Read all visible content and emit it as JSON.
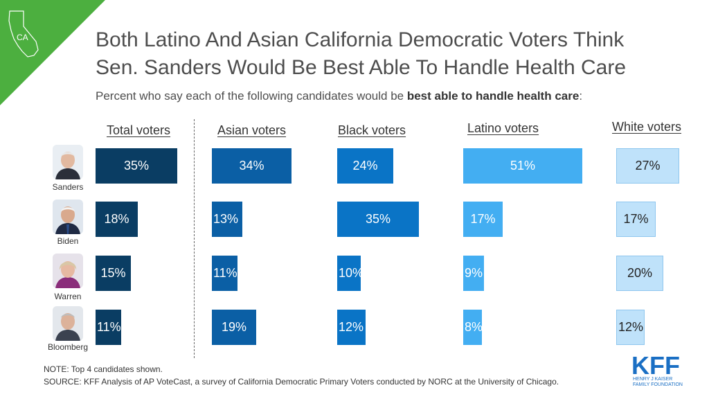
{
  "badge": {
    "label": "CA"
  },
  "header": {
    "title_line1": "Both Latino And Asian California Democratic Voters Think",
    "title_line2": "Sen. Sanders Would Be Best Able To Handle Health Care",
    "subtitle_pre": "Percent who say each of the following candidates would be ",
    "subtitle_bold": "best able to handle health care",
    "subtitle_post": ":"
  },
  "colors": {
    "total": "#0a3d63",
    "asian": "#0b5fa5",
    "black": "#0a74c6",
    "latino": "#43aef2",
    "white": "#bfe2fa",
    "green": "#4caf3f"
  },
  "chart_data": {
    "type": "bar",
    "title": "Both Latino And Asian California Democratic Voters Think Sen. Sanders Would Be Best Able To Handle Health Care",
    "subtitle": "Percent who say each of the following candidates would be best able to handle health care:",
    "candidates": [
      "Sanders",
      "Biden",
      "Warren",
      "Bloomberg"
    ],
    "series": [
      {
        "name": "Total voters",
        "values": [
          35,
          18,
          15,
          11
        ]
      },
      {
        "name": "Asian voters",
        "values": [
          34,
          13,
          11,
          19
        ]
      },
      {
        "name": "Black voters",
        "values": [
          24,
          35,
          10,
          12
        ]
      },
      {
        "name": "Latino voters",
        "values": [
          51,
          17,
          9,
          8
        ]
      },
      {
        "name": "White voters",
        "values": [
          27,
          17,
          20,
          12
        ]
      }
    ],
    "unit": "%"
  },
  "footer": {
    "note": "NOTE: Top 4 candidates shown.",
    "source": "SOURCE: KFF Analysis of AP VoteCast, a survey of California Democratic Primary Voters conducted by NORC at the University of Chicago."
  },
  "logo": {
    "text": "KFF",
    "line1": "HENRY J KAISER",
    "line2": "FAMILY FOUNDATION"
  }
}
